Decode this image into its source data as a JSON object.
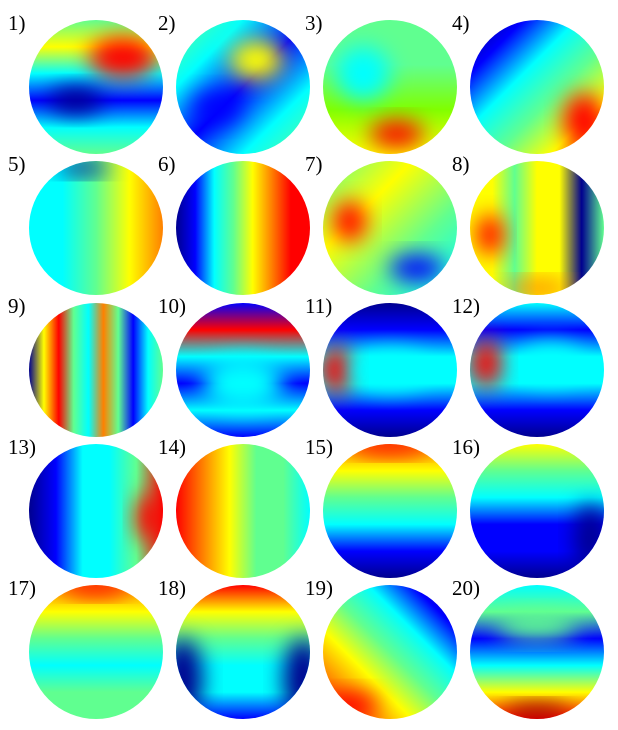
{
  "panels": [
    {
      "label": "1)"
    },
    {
      "label": "2)"
    },
    {
      "label": "3)"
    },
    {
      "label": "4)"
    },
    {
      "label": "5)"
    },
    {
      "label": "6)"
    },
    {
      "label": "7)"
    },
    {
      "label": "8)"
    },
    {
      "label": "9)"
    },
    {
      "label": "10)"
    },
    {
      "label": "11)"
    },
    {
      "label": "12)"
    },
    {
      "label": "13)"
    },
    {
      "label": "14)"
    },
    {
      "label": "15)"
    },
    {
      "label": "16)"
    },
    {
      "label": "17)"
    },
    {
      "label": "18)"
    },
    {
      "label": "19)"
    },
    {
      "label": "20)"
    }
  ]
}
